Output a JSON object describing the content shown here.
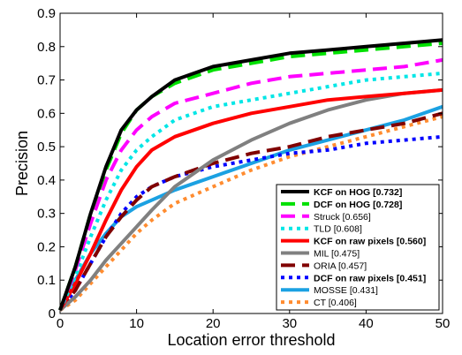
{
  "chart_data": {
    "type": "line",
    "title": "",
    "xlabel": "Location error threshold",
    "ylabel": "Precision",
    "xlim": [
      0,
      50
    ],
    "ylim": [
      0,
      0.9
    ],
    "xticks": [
      0,
      10,
      20,
      30,
      40,
      50
    ],
    "yticks": [
      0,
      0.1,
      0.2,
      0.3,
      0.4,
      0.5,
      0.6,
      0.7,
      0.8,
      0.9
    ],
    "xtick_labels": [
      "0",
      "10",
      "20",
      "30",
      "40",
      "50"
    ],
    "ytick_labels": [
      "0",
      "0.1",
      "0.2",
      "0.3",
      "0.4",
      "0.5",
      "0.6",
      "0.7",
      "0.8",
      "0.9"
    ],
    "grid": false,
    "legend_position": "bottom-right",
    "x": [
      0,
      2,
      4,
      6,
      8,
      10,
      12,
      15,
      20,
      25,
      30,
      35,
      40,
      45,
      50
    ],
    "series": [
      {
        "name": "KCF on HOG [0.732]",
        "bold": true,
        "color": "#000000",
        "dash": "solid",
        "values": [
          0.01,
          0.14,
          0.3,
          0.44,
          0.55,
          0.61,
          0.65,
          0.7,
          0.74,
          0.76,
          0.78,
          0.79,
          0.8,
          0.81,
          0.82
        ]
      },
      {
        "name": "DCF on HOG [0.728]",
        "bold": true,
        "color": "#00e000",
        "dash": "dash",
        "values": [
          0.01,
          0.14,
          0.3,
          0.43,
          0.54,
          0.61,
          0.65,
          0.69,
          0.73,
          0.75,
          0.77,
          0.78,
          0.79,
          0.8,
          0.81
        ]
      },
      {
        "name": "Struck [0.656]",
        "bold": false,
        "color": "#ff00ff",
        "dash": "dash",
        "values": [
          0.01,
          0.13,
          0.27,
          0.4,
          0.49,
          0.55,
          0.59,
          0.63,
          0.66,
          0.69,
          0.71,
          0.72,
          0.73,
          0.74,
          0.76
        ]
      },
      {
        "name": "TLD [0.608]",
        "bold": false,
        "color": "#00e6e6",
        "dash": "dot",
        "values": [
          0.01,
          0.11,
          0.23,
          0.34,
          0.43,
          0.49,
          0.53,
          0.58,
          0.62,
          0.64,
          0.66,
          0.68,
          0.7,
          0.71,
          0.72
        ]
      },
      {
        "name": "KCF on raw pixels [0.560]",
        "bold": true,
        "color": "#ff0000",
        "dash": "solid",
        "values": [
          0.01,
          0.09,
          0.18,
          0.28,
          0.37,
          0.44,
          0.49,
          0.53,
          0.57,
          0.6,
          0.62,
          0.64,
          0.65,
          0.66,
          0.67
        ]
      },
      {
        "name": "MIL [0.475]",
        "bold": false,
        "color": "#808080",
        "dash": "solid",
        "values": [
          0.01,
          0.05,
          0.1,
          0.16,
          0.21,
          0.26,
          0.31,
          0.38,
          0.46,
          0.52,
          0.57,
          0.61,
          0.64,
          0.66,
          0.67
        ]
      },
      {
        "name": "ORIA [0.457]",
        "bold": false,
        "color": "#800000",
        "dash": "dash",
        "values": [
          0.01,
          0.07,
          0.15,
          0.23,
          0.29,
          0.34,
          0.38,
          0.41,
          0.45,
          0.48,
          0.5,
          0.53,
          0.55,
          0.57,
          0.6
        ]
      },
      {
        "name": "DCF on raw pixels [0.451]",
        "bold": true,
        "color": "#0000ff",
        "dash": "dot",
        "values": [
          0.01,
          0.07,
          0.15,
          0.23,
          0.3,
          0.35,
          0.38,
          0.41,
          0.44,
          0.46,
          0.48,
          0.49,
          0.51,
          0.52,
          0.53
        ]
      },
      {
        "name": "MOSSE [0.431]",
        "bold": false,
        "color": "#1ba1e2",
        "dash": "solid",
        "values": [
          0.01,
          0.1,
          0.18,
          0.24,
          0.29,
          0.32,
          0.34,
          0.37,
          0.41,
          0.45,
          0.49,
          0.52,
          0.55,
          0.58,
          0.62
        ]
      },
      {
        "name": "CT [0.406]",
        "bold": false,
        "color": "#ff8c30",
        "dash": "dot",
        "values": [
          0.01,
          0.04,
          0.09,
          0.14,
          0.19,
          0.24,
          0.28,
          0.33,
          0.38,
          0.43,
          0.47,
          0.5,
          0.53,
          0.56,
          0.59
        ]
      }
    ]
  }
}
